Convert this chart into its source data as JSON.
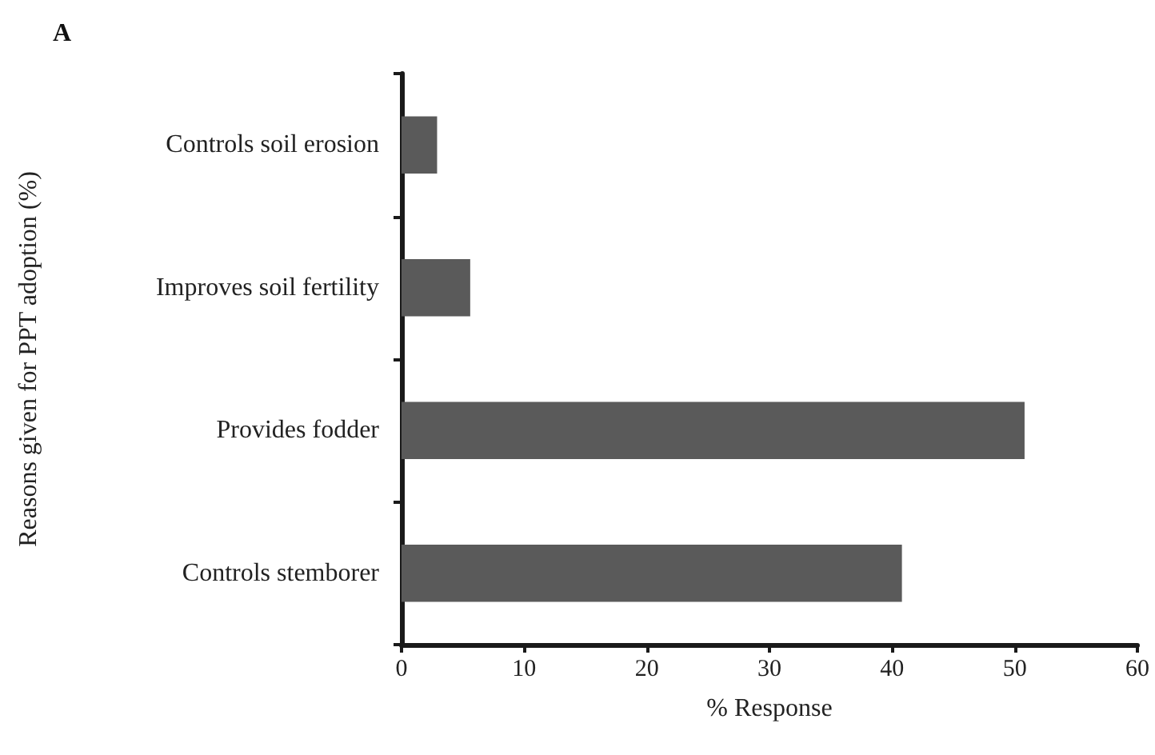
{
  "chart_data": {
    "type": "bar",
    "orientation": "horizontal",
    "title": "A",
    "xlabel": "% Response",
    "ylabel": "Reasons given for PPT adoption (%)",
    "categories": [
      "Controls soil erosion",
      "Improves soil fertility",
      "Provides fodder",
      "Controls stemborer"
    ],
    "values": [
      2.9,
      5.6,
      50.8,
      40.8
    ],
    "color": "#5a5a5a",
    "xlim": [
      0,
      60
    ],
    "xticks": [
      0,
      10,
      20,
      30,
      40,
      50,
      60
    ],
    "grid": false
  }
}
